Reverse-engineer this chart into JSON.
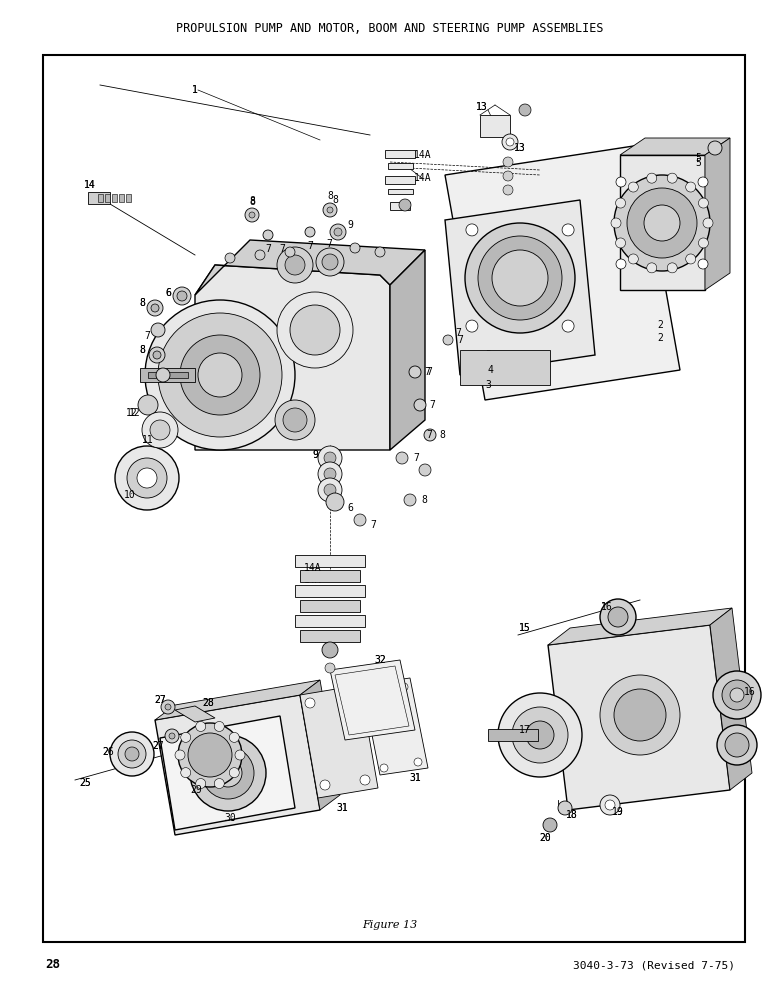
{
  "title": "PROPULSION PUMP AND MOTOR, BOOM AND STEERING PUMP ASSEMBLIES",
  "figure_label": "Figure 13",
  "page_number": "28",
  "revision": "3040-3-73 (Revised 7-75)",
  "bg_color": "#ffffff",
  "border_color": "#000000",
  "text_color": "#000000",
  "title_fontsize": 8.5,
  "label_fontsize": 7,
  "fig_label_fontsize": 8,
  "page_fontsize": 9,
  "border": [
    0.055,
    0.058,
    0.955,
    0.945
  ]
}
